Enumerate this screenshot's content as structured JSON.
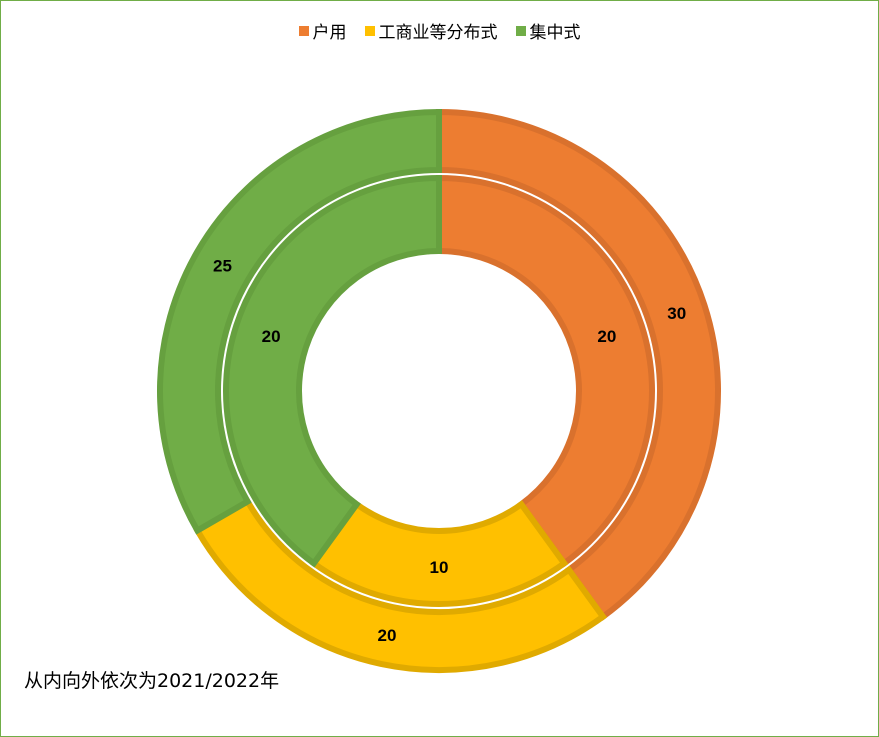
{
  "chart_data": {
    "type": "donut",
    "categories": [
      "户用",
      "工商业等分布式",
      "集中式"
    ],
    "colors": [
      "#ed7d31",
      "#ffc000",
      "#70ad47"
    ],
    "border_colors": [
      "#d9712d",
      "#e0aa00",
      "#66a03f"
    ],
    "series": [
      {
        "ring": "inner",
        "values": [
          20,
          10,
          20
        ]
      },
      {
        "ring": "outer",
        "values": [
          30,
          20,
          25
        ]
      }
    ],
    "legend_position": "top"
  },
  "note": "从内向外依次为2021/2022年"
}
